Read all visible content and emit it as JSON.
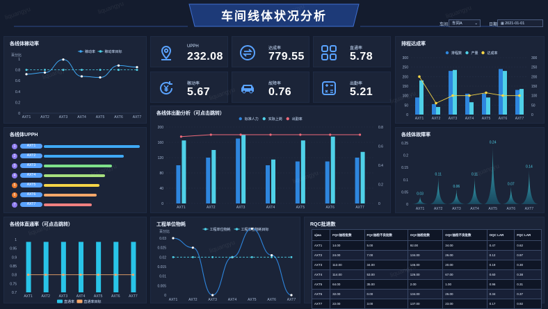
{
  "header": {
    "title": "车间线体状况分析",
    "workshop_label": "车间",
    "workshop_value": "车间A",
    "date_label": "日期",
    "date_value": "2021-01-01",
    "watermark": "liquangyu"
  },
  "kpis": [
    {
      "label": "UPPH",
      "value": "232.08",
      "icon": "location-pin-icon"
    },
    {
      "label": "达成率",
      "value": "779.55",
      "icon": "swap-arrows-icon"
    },
    {
      "label": "直通率",
      "value": "5.78",
      "icon": "grid-apps-icon"
    },
    {
      "label": "稼动率",
      "value": "5.67",
      "icon": "yen-refresh-icon"
    },
    {
      "label": "故障率",
      "value": "0.76",
      "icon": "car-icon"
    },
    {
      "label": "出勤率",
      "value": "5.21",
      "icon": "calculator-icon"
    }
  ],
  "panels": {
    "oee": {
      "title": "各线体稼动率",
      "legend": [
        "稼动率",
        "稼动率目标"
      ],
      "unit": "百分比"
    },
    "upph": {
      "title": "各线体UPPH"
    },
    "attendance": {
      "title": "各线体出勤分析（可点击跳转）",
      "legend": [
        "标准人力",
        "实际上岗",
        "出勤率"
      ]
    },
    "plan": {
      "title": "排程达成率",
      "legend": [
        "排程数",
        "产量",
        "达成率"
      ]
    },
    "failure": {
      "title": "各线体故障率"
    },
    "fpy": {
      "title": "各线体直通率（可点击跳转）",
      "legend": [
        "直通率",
        "直通率目标"
      ]
    },
    "material": {
      "title": "工程单位物耗",
      "legend": [
        "工程单位物耗",
        "工程单位物耗目标"
      ],
      "unit": "百分比"
    },
    "qc": {
      "title": "RQC批退数"
    }
  },
  "lines": [
    "AXT1",
    "AXT2",
    "AXT3",
    "AXT4",
    "AXT5",
    "AXT6",
    "AXT7"
  ],
  "chart_data": [
    {
      "type": "line",
      "id": "oee",
      "categories": [
        "AXT1",
        "AXT2",
        "AXT3",
        "AXT4",
        "AXT5",
        "AXT6",
        "AXT7"
      ],
      "series": [
        {
          "name": "稼动率",
          "values": [
            0.72,
            0.75,
            0.99,
            0.68,
            0.66,
            0.88,
            0.85
          ]
        },
        {
          "name": "稼动率目标",
          "values": [
            0.8,
            0.8,
            0.8,
            0.8,
            0.8,
            0.8,
            0.8
          ]
        }
      ],
      "yticks": [
        "1",
        "0.8",
        "0.6",
        "0.4",
        "0.2",
        "0"
      ]
    },
    {
      "type": "bar",
      "id": "upph",
      "categories": [
        "AXT1",
        "AXT2",
        "AXT3",
        "AXT4",
        "AXT5",
        "AXT6",
        "AXT7"
      ],
      "values": [
        1,
        0.83,
        0.71,
        0.64,
        0.58,
        0.55,
        0.5
      ]
    },
    {
      "type": "bar",
      "id": "attendance",
      "categories": [
        "AXT1",
        "AXT2",
        "AXT3",
        "AXT4",
        "AXT5",
        "AXT6",
        "AXT7"
      ],
      "series": [
        {
          "name": "标准人力",
          "values": [
            100,
            120,
            170,
            100,
            110,
            110,
            120
          ]
        },
        {
          "name": "实际上岗",
          "values": [
            165,
            140,
            180,
            115,
            165,
            175,
            135
          ]
        },
        {
          "name": "出勤率",
          "values": [
            0.7,
            0.72,
            0.72,
            0.72,
            0.72,
            0.72,
            0.72
          ]
        }
      ],
      "yticks": [
        "200",
        "160",
        "120",
        "80",
        "40",
        "0"
      ],
      "y2ticks": [
        "0.8",
        "0.6",
        "0.4",
        "0.2",
        "0"
      ]
    },
    {
      "type": "bar",
      "id": "plan",
      "categories": [
        "AXT1",
        "AXT2",
        "AXT3",
        "AXT4",
        "AXT5",
        "AXT6",
        "AXT7"
      ],
      "series": [
        {
          "name": "排程数",
          "values": [
            90,
            55,
            230,
            110,
            110,
            240,
            130
          ]
        },
        {
          "name": "产量",
          "values": [
            180,
            40,
            235,
            65,
            90,
            230,
            135
          ]
        },
        {
          "name": "达成率",
          "values": [
            200,
            60,
            100,
            100,
            115,
            100,
            100
          ]
        }
      ],
      "yticks": [
        "300",
        "250",
        "200",
        "150",
        "100",
        "50",
        "0"
      ],
      "y2ticks": [
        "300",
        "250",
        "200",
        "150",
        "100",
        "50",
        "0"
      ]
    },
    {
      "type": "area",
      "id": "failure",
      "categories": [
        "AXT1",
        "AXT2",
        "AXT3",
        "AXT4",
        "AXT5",
        "AXT6",
        "AXT7"
      ],
      "values": [
        0.03,
        0.11,
        0.06,
        0.11,
        0.24,
        0.07,
        0.14
      ],
      "labels": [
        "0.03",
        "0.11",
        "0.06",
        "0.11",
        "0.24",
        "0.07",
        "0.14"
      ],
      "yticks": [
        "0.25",
        "0.2",
        "0.15",
        "0.1",
        "0.05",
        "0"
      ]
    },
    {
      "type": "bar",
      "id": "fpy",
      "categories": [
        "AXT1",
        "AXT2",
        "AXT3",
        "AXT4",
        "AXT5",
        "AXT6",
        "AXT7"
      ],
      "series": [
        {
          "name": "直通率",
          "values": [
            0.9,
            0.9,
            0.9,
            0.9,
            0.9,
            0.9,
            0.9
          ]
        },
        {
          "name": "直通率目标",
          "values": [
            0.8,
            0.8,
            0.8,
            0.8,
            0.8,
            0.8,
            0.8
          ]
        }
      ],
      "yticks": [
        "1",
        "0.95",
        "0.9",
        "0.85",
        "0.8",
        "0.75",
        "0.7"
      ]
    },
    {
      "type": "line",
      "id": "material",
      "categories": [
        "AXT1",
        "AXT2",
        "AXT3",
        "AXT4",
        "AXT5",
        "AXT6",
        "AXT7"
      ],
      "series": [
        {
          "name": "工程单位物耗",
          "values": [
            0.03,
            0.025,
            0.0,
            0.02,
            0.035,
            0.021,
            0.0
          ]
        },
        {
          "name": "工程单位物耗目标",
          "values": [
            0.02,
            0.02,
            0.02,
            0.02,
            0.02,
            0.02,
            0.02
          ]
        }
      ],
      "yticks": [
        "0.03",
        "0.025",
        "0.02",
        "0.015",
        "0.01",
        "0.005",
        "0"
      ]
    }
  ],
  "qc_table": {
    "headers": [
      "xjwa",
      "FQC抽检批数",
      "FQC抽检不良批数",
      "OQC抽检批数",
      "OQC抽检不良批数",
      "OQC LAR",
      "FQC LAR"
    ],
    "rows": [
      [
        "AXT1",
        "14.00",
        "5.00",
        "92.00",
        "34.00",
        "0.47",
        "0.62"
      ],
      [
        "AXT2",
        "24.00",
        "7.00",
        "134.00",
        "26.00",
        "0.12",
        "0.97"
      ],
      [
        "AXT3",
        "113.00",
        "34.00",
        "146.00",
        "20.00",
        "0.19",
        "0.30"
      ],
      [
        "AXT4",
        "114.00",
        "53.00",
        "126.00",
        "67.00",
        "0.60",
        "0.38"
      ],
      [
        "AXT5",
        "64.00",
        "35.00",
        "2.00",
        "1.00",
        "0.96",
        "0.31"
      ],
      [
        "AXT6",
        "32.00",
        "0.00",
        "134.00",
        "26.00",
        "0.34",
        "0.37"
      ],
      [
        "AXT7",
        "22.00",
        "3.00",
        "137.00",
        "23.00",
        "0.17",
        "0.92"
      ]
    ]
  }
}
